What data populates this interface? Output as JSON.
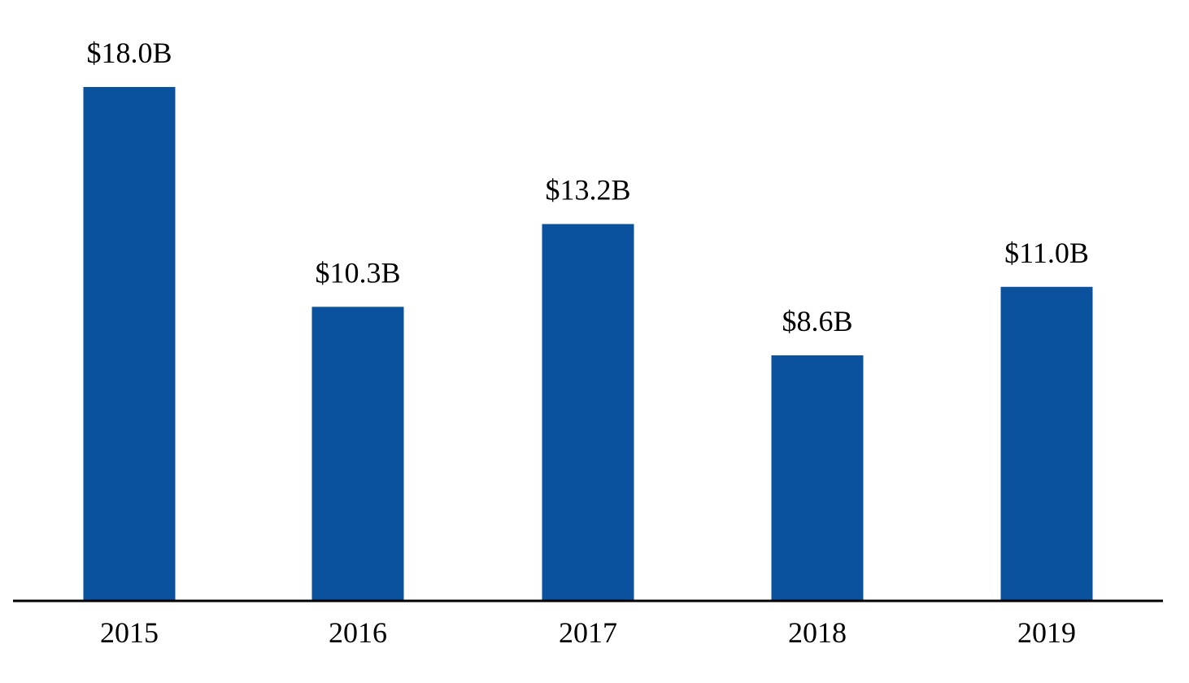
{
  "chart_data": {
    "type": "bar",
    "title": "",
    "xlabel": "",
    "ylabel": "",
    "categories": [
      "2015",
      "2016",
      "2017",
      "2018",
      "2019"
    ],
    "values": [
      18.0,
      10.3,
      13.2,
      8.6,
      11.0
    ],
    "value_labels": [
      "$18.0B",
      "$10.3B",
      "$13.2B",
      "$8.6B",
      "$11.0B"
    ],
    "ylim": [
      0,
      18.0
    ],
    "grid": false,
    "legend": "none",
    "colors": {
      "bar": "#0B529E",
      "axis": "#000000",
      "text": "#000000"
    }
  }
}
